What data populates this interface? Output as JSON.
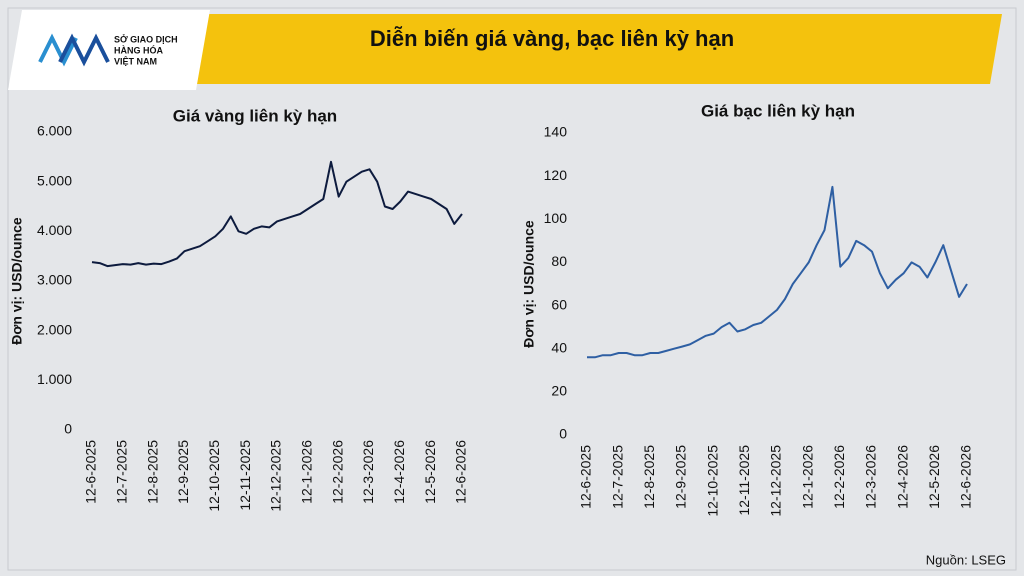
{
  "header": {
    "logo": [
      "SỞ GIAO DỊCH",
      "HÀNG HÓA",
      "VIỆT NAM"
    ],
    "title": "Diễn biến giá vàng, bạc liên kỳ hạn"
  },
  "source": "Nguồn: LSEG",
  "chart_data": [
    {
      "type": "line",
      "title": "Giá vàng liên kỳ hạn",
      "y_label": "Đơn vị: USD/ounce",
      "color": "#0d1b3e",
      "categories": [
        "12-6-2025",
        null,
        null,
        null,
        "12-7-2025",
        null,
        null,
        null,
        "12-8-2025",
        null,
        null,
        null,
        "12-9-2025",
        null,
        null,
        null,
        "12-10-2025",
        null,
        null,
        null,
        "12-11-2025",
        null,
        null,
        null,
        "12-12-2025",
        null,
        null,
        null,
        "12-1-2026",
        null,
        null,
        null,
        "12-2-2026",
        null,
        null,
        null,
        "12-3-2026",
        null,
        null,
        null,
        "12-4-2026",
        null,
        null,
        null,
        "12-5-2026",
        null,
        null,
        null,
        "12-6-2026"
      ],
      "values": [
        3380,
        3360,
        3300,
        3320,
        3340,
        3330,
        3360,
        3330,
        3350,
        3340,
        3390,
        3450,
        3600,
        3650,
        3700,
        3800,
        3900,
        4050,
        4300,
        4000,
        3950,
        4050,
        4100,
        4080,
        4200,
        4250,
        4300,
        4350,
        4450,
        4550,
        4650,
        5400,
        4700,
        5000,
        5100,
        5200,
        5250,
        5000,
        4500,
        4450,
        4600,
        4800,
        4750,
        4700,
        4650,
        4550,
        4450,
        4150,
        4350
      ],
      "ylim": [
        0,
        6000
      ],
      "yticks": [
        0,
        {
          "value": 1000,
          "label": "1.000"
        },
        {
          "value": 2000,
          "label": "2.000"
        },
        {
          "value": 3000,
          "label": "3.000"
        },
        {
          "value": 4000,
          "label": "4.000"
        },
        {
          "value": 5000,
          "label": "5.000"
        },
        {
          "value": 6000,
          "label": "6.000"
        }
      ]
    },
    {
      "type": "line",
      "title": "Giá bạc liên kỳ hạn",
      "y_label": "Đơn vị: USD/ounce",
      "color": "#2e5fa3",
      "categories": [
        "12-6-2025",
        null,
        null,
        null,
        "12-7-2025",
        null,
        null,
        null,
        "12-8-2025",
        null,
        null,
        null,
        "12-9-2025",
        null,
        null,
        null,
        "12-10-2025",
        null,
        null,
        null,
        "12-11-2025",
        null,
        null,
        null,
        "12-12-2025",
        null,
        null,
        null,
        "12-1-2026",
        null,
        null,
        null,
        "12-2-2026",
        null,
        null,
        null,
        "12-3-2026",
        null,
        null,
        null,
        "12-4-2026",
        null,
        null,
        null,
        "12-5-2026",
        null,
        null,
        null,
        "12-6-2026"
      ],
      "values": [
        36,
        36,
        37,
        37,
        38,
        38,
        37,
        37,
        38,
        38,
        39,
        40,
        41,
        42,
        44,
        46,
        47,
        50,
        52,
        48,
        49,
        51,
        52,
        55,
        58,
        63,
        70,
        75,
        80,
        88,
        95,
        115,
        78,
        82,
        90,
        88,
        85,
        75,
        68,
        72,
        75,
        80,
        78,
        73,
        80,
        88,
        76,
        64,
        70
      ],
      "ylim": [
        0,
        140
      ],
      "yticks": [
        0,
        20,
        40,
        60,
        80,
        100,
        120,
        140
      ]
    }
  ]
}
